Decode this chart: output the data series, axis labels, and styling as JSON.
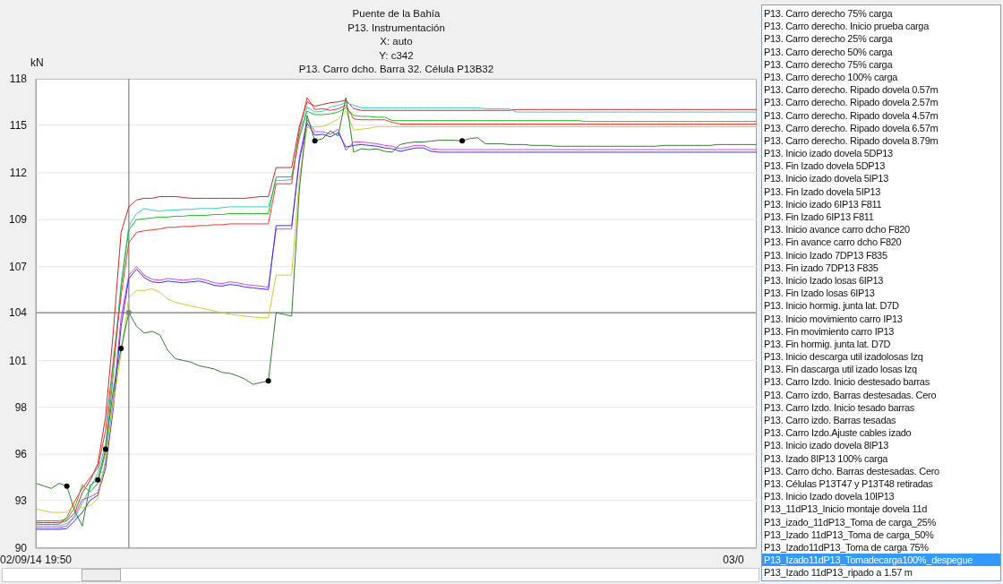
{
  "chart_data": [
    {
      "type": "line",
      "title": "Puente de la Bahía",
      "subtitle": "P13. Instrumentación\nX: auto\nY: c342\nP13. Carro dcho. Barra 32. Célula P13B32",
      "ylabel": "kN",
      "categories": [
        "02/09/14 19:50",
        null,
        null,
        null,
        null,
        null,
        null,
        null,
        null,
        null,
        null,
        null,
        null,
        null,
        null,
        null,
        null,
        null,
        null,
        null,
        null,
        null,
        null,
        null,
        null,
        null,
        null,
        null,
        null,
        null,
        null,
        null,
        null,
        null,
        null,
        null,
        null,
        null,
        null,
        null,
        null,
        null,
        null,
        null,
        null,
        null,
        null,
        null,
        null,
        null,
        null,
        null,
        null,
        null,
        null,
        null,
        null,
        null,
        null,
        null,
        null,
        null,
        null,
        null,
        null,
        null,
        null,
        null,
        null,
        null,
        null,
        null,
        null,
        null,
        null,
        null,
        null,
        null,
        null,
        null,
        null,
        null,
        null,
        null,
        null,
        null,
        null,
        null,
        null,
        null,
        "03/0",
        null,
        null,
        null
      ],
      "ylim": [
        90.2,
        117.7
      ],
      "yticks": [
        {
          "value": 90.2,
          "label": "90"
        },
        93,
        {
          "value": 95.7,
          "label": "96"
        },
        {
          "value": 98.45,
          "label": "98"
        },
        {
          "value": 101.2,
          "label": "101"
        },
        104,
        {
          "value": 106.7,
          "label": "107"
        },
        {
          "value": 109.45,
          "label": "109"
        },
        {
          "value": 112.2,
          "label": "112"
        },
        115,
        {
          "value": 117.7,
          "label": "118"
        }
      ],
      "grid": "y",
      "line_style": "solid",
      "series": [
        {
          "color": "#cc2a2a",
          "values": [
            91.7,
            91.7,
            91.7,
            91.7,
            91.8,
            92.25,
            93.45,
            94.15,
            95.15,
            97.9,
            102.9,
            108.7,
            110.2,
            110.6,
            110.7,
            110.7,
            110.8,
            110.8,
            110.8,
            110.75,
            110.7,
            110.7,
            110.7,
            110.7,
            110.7,
            110.7,
            110.7,
            110.7,
            110.75,
            110.8,
            110.8,
            112.5,
            112.5,
            112.5,
            114.9,
            116.35,
            116.1,
            116.2,
            116.3,
            116.35,
            116.45,
            115.95,
            115.85,
            115.85,
            115.85,
            115.85,
            115.85,
            115.85,
            115.85,
            115.85,
            115.85,
            115.85,
            115.85,
            115.85,
            115.85,
            115.85,
            115.85,
            115.85,
            115.85,
            115.85,
            115.85,
            115.85,
            115.9,
            115.9,
            115.9,
            115.9,
            115.9,
            115.9,
            115.9,
            115.9,
            115.9,
            115.9,
            115.9,
            115.9,
            115.9,
            115.9,
            115.9,
            115.9,
            115.9,
            115.9,
            115.9,
            115.9,
            115.9,
            115.9,
            115.9,
            115.9,
            115.9,
            115.9,
            115.9,
            115.9,
            115.9,
            115.9,
            115.9,
            115.9
          ]
        },
        {
          "color": "#33cccc",
          "values": [
            91.5,
            91.5,
            91.5,
            91.5,
            91.65,
            91.95,
            92.85,
            93.7,
            94.6,
            96.3,
            101.0,
            105.7,
            109.1,
            109.8,
            110.1,
            110.0,
            109.95,
            110.0,
            110.0,
            110.05,
            110.05,
            110.1,
            110.1,
            110.1,
            110.15,
            110.2,
            110.2,
            110.2,
            110.2,
            110.2,
            110.2,
            111.75,
            111.75,
            111.8,
            114.45,
            116.05,
            115.75,
            115.8,
            116.05,
            116.15,
            116.3,
            116.15,
            116.0,
            116.0,
            116.0,
            116.0,
            116.0,
            116.0,
            116.0,
            116.0,
            116.0,
            116.0,
            116.0,
            116.0,
            116.0,
            116.0,
            116.0,
            116.0,
            115.95,
            115.95,
            115.95,
            115.95,
            115.75,
            115.75,
            115.75,
            115.75,
            115.75,
            115.75,
            115.75,
            115.75,
            115.75,
            115.75,
            115.75,
            115.75,
            115.75,
            115.75,
            115.75,
            115.75,
            115.75,
            115.75,
            115.75,
            115.75,
            115.75,
            115.75,
            115.75,
            115.75,
            115.75,
            115.75,
            115.75,
            115.75,
            115.75,
            115.75,
            115.75,
            115.75
          ]
        },
        {
          "color": "#22bb22",
          "values": [
            91.8,
            91.8,
            91.8,
            91.8,
            91.9,
            92.55,
            93.9,
            93.5,
            94.0,
            95.8,
            100.4,
            105.5,
            108.85,
            109.45,
            109.5,
            109.55,
            109.6,
            109.6,
            109.65,
            109.65,
            109.7,
            109.7,
            109.7,
            109.75,
            109.75,
            109.8,
            109.8,
            109.8,
            109.8,
            109.8,
            109.8,
            111.95,
            111.95,
            111.95,
            114.25,
            115.8,
            115.6,
            115.6,
            115.65,
            115.75,
            116.0,
            115.55,
            115.5,
            115.5,
            115.45,
            115.45,
            115.25,
            115.25,
            115.25,
            115.25,
            115.25,
            115.25,
            115.25,
            115.25,
            115.25,
            115.25,
            115.25,
            115.25,
            115.25,
            115.25,
            115.25,
            115.25,
            115.25,
            115.25,
            115.25,
            115.25,
            115.25,
            115.25,
            115.25,
            115.25,
            115.25,
            115.2,
            115.2,
            115.2,
            115.2,
            115.2,
            115.2,
            115.2,
            115.2,
            115.2,
            115.2,
            115.2,
            115.2,
            115.2,
            115.2,
            115.2,
            115.2,
            115.2,
            115.2,
            115.2,
            115.2,
            115.2,
            115.2,
            115.2
          ]
        },
        {
          "color": "#ff3333",
          "values": [
            91.6,
            91.6,
            91.6,
            91.6,
            92.0,
            92.95,
            93.7,
            94.35,
            94.9,
            97.1,
            101.2,
            105.0,
            108.1,
            108.7,
            108.8,
            108.85,
            108.9,
            109.0,
            109.0,
            109.05,
            109.05,
            109.1,
            109.1,
            109.15,
            109.15,
            109.2,
            109.2,
            109.2,
            109.2,
            109.2,
            109.2,
            111.55,
            111.55,
            111.55,
            114.7,
            116.6,
            115.9,
            115.95,
            115.85,
            115.95,
            116.15,
            115.35,
            115.3,
            115.3,
            115.3,
            115.3,
            115.15,
            115.05,
            115.05,
            115.05,
            115.05,
            115.05,
            115.05,
            115.05,
            115.05,
            115.05,
            115.05,
            115.05,
            115.05,
            115.05,
            115.05,
            115.05,
            115.05,
            115.05,
            115.05,
            115.05,
            115.05,
            115.05,
            115.05,
            115.05,
            115.05,
            115.05,
            115.05,
            115.05,
            115.05,
            115.05,
            115.05,
            115.05,
            115.05,
            115.05,
            115.05,
            115.05,
            115.05,
            115.05,
            115.05,
            115.05,
            115.05,
            115.05,
            115.05,
            115.05,
            115.05,
            115.05,
            115.05,
            115.05
          ]
        },
        {
          "color": "#e040e0",
          "values": [
            91.4,
            91.4,
            91.4,
            91.4,
            91.5,
            92.1,
            93.05,
            93.2,
            93.45,
            95.2,
            98.95,
            103.7,
            106.2,
            106.7,
            106.2,
            105.95,
            105.9,
            106.0,
            105.95,
            105.9,
            105.95,
            106.0,
            105.9,
            105.75,
            105.7,
            105.8,
            105.75,
            105.65,
            105.6,
            105.55,
            105.5,
            108.9,
            108.9,
            108.9,
            113.1,
            115.3,
            114.6,
            114.6,
            114.45,
            114.75,
            113.5,
            114.0,
            114.0,
            113.95,
            113.9,
            113.8,
            113.75,
            113.6,
            113.7,
            113.8,
            113.8,
            113.6,
            113.55,
            113.55,
            113.55,
            113.55,
            113.55,
            113.55,
            113.55,
            113.55,
            113.55,
            113.55,
            113.55,
            113.55,
            113.55,
            113.55,
            113.55,
            113.55,
            113.55,
            113.55,
            113.55,
            113.55,
            113.55,
            113.55,
            113.55,
            113.55,
            113.55,
            113.55,
            113.55,
            113.55,
            113.55,
            113.55,
            113.55,
            113.55,
            113.55,
            113.55,
            113.55,
            113.55,
            113.55,
            113.55,
            113.55,
            113.55,
            113.55,
            113.55
          ]
        },
        {
          "color": "#3333ff",
          "values": [
            91.3,
            91.3,
            91.3,
            91.3,
            91.35,
            91.8,
            92.3,
            93.0,
            93.3,
            94.9,
            98.4,
            103.2,
            106.0,
            106.55,
            106.05,
            105.8,
            105.75,
            105.85,
            105.8,
            105.75,
            105.8,
            105.85,
            105.75,
            105.6,
            105.55,
            105.65,
            105.6,
            105.5,
            105.45,
            105.4,
            105.35,
            109.1,
            109.1,
            109.1,
            112.9,
            115.1,
            114.4,
            114.45,
            114.3,
            114.55,
            113.7,
            113.8,
            113.85,
            113.8,
            113.75,
            113.65,
            113.6,
            113.45,
            113.55,
            113.65,
            113.65,
            113.45,
            113.4,
            113.4,
            113.4,
            113.4,
            113.4,
            113.4,
            113.4,
            113.4,
            113.4,
            113.4,
            113.4,
            113.4,
            113.4,
            113.4,
            113.4,
            113.4,
            113.4,
            113.4,
            113.4,
            113.4,
            113.4,
            113.4,
            113.4,
            113.4,
            113.4,
            113.4,
            113.4,
            113.4,
            113.4,
            113.4,
            113.4,
            113.4,
            113.4,
            113.4,
            113.4,
            113.4,
            113.4,
            113.4,
            113.4,
            113.4,
            113.4,
            113.4
          ]
        },
        {
          "color": "#cccc33",
          "values": [
            92.5,
            92.4,
            92.3,
            92.3,
            92.3,
            92.75,
            92.55,
            92.7,
            93.1,
            95.4,
            98.65,
            101.6,
            104.9,
            105.3,
            105.3,
            105.4,
            105.2,
            104.8,
            104.6,
            104.5,
            104.4,
            104.3,
            104.2,
            104.1,
            104.0,
            103.9,
            103.85,
            103.8,
            103.75,
            103.7,
            103.7,
            106.2,
            106.2,
            106.2,
            111.9,
            114.85,
            114.9,
            114.9,
            115.1,
            115.35,
            115.8,
            114.7,
            114.75,
            114.8,
            114.9,
            114.9,
            114.9,
            114.9,
            114.9,
            114.9,
            114.9,
            114.9,
            114.9,
            114.9,
            114.9,
            114.9,
            114.9,
            114.9,
            114.9,
            114.9,
            114.9,
            114.9,
            114.9,
            114.9,
            114.9,
            114.9,
            114.9,
            114.9,
            114.9,
            114.9,
            114.9,
            114.9,
            114.9,
            114.9,
            114.9,
            114.9,
            114.9,
            114.9,
            114.9,
            114.9,
            114.9,
            114.9,
            114.9,
            114.9,
            114.9,
            114.9,
            114.9,
            114.9,
            114.9,
            114.9,
            114.9,
            114.9,
            114.9,
            114.9
          ]
        },
        {
          "color": "#2f7f2f",
          "values": [
            94.0,
            93.85,
            93.7,
            94.0,
            93.84,
            92.4,
            91.5,
            93.9,
            94.2,
            96.0,
            99.5,
            101.9,
            104.0,
            103.2,
            102.8,
            102.9,
            102.7,
            101.8,
            101.3,
            101.2,
            101.1,
            100.9,
            100.8,
            100.7,
            100.5,
            100.45,
            100.3,
            100.1,
            99.8,
            99.9,
            100.0,
            104.0,
            103.9,
            103.8,
            111.2,
            115.55,
            114.06,
            114.2,
            114.65,
            114.35,
            116.6,
            113.4,
            113.6,
            113.55,
            113.6,
            113.45,
            113.4,
            113.85,
            113.95,
            114.0,
            114.0,
            114.05,
            114.1,
            114.1,
            114.1,
            114.06,
            114.2,
            114.25,
            113.9,
            113.9,
            113.9,
            113.85,
            113.85,
            113.85,
            113.8,
            113.8,
            113.8,
            113.75,
            113.75,
            113.75,
            113.75,
            113.75,
            113.75,
            113.75,
            113.75,
            113.75,
            113.75,
            113.75,
            113.75,
            113.75,
            113.75,
            113.8,
            113.8,
            113.8,
            113.8,
            113.8,
            113.8,
            113.8,
            113.85,
            113.85,
            113.85,
            113.85,
            113.85,
            113.85
          ]
        },
        {
          "type": "scatter",
          "color": "#000000",
          "values": [
            null,
            null,
            null,
            null,
            93.84,
            null,
            null,
            null,
            94.2,
            96.0,
            null,
            101.9,
            104.0,
            null,
            null,
            null,
            null,
            null,
            null,
            null,
            null,
            null,
            null,
            null,
            null,
            null,
            null,
            null,
            null,
            null,
            100.0,
            null,
            null,
            null,
            null,
            null,
            114.06,
            null,
            null,
            null,
            null,
            null,
            null,
            null,
            null,
            null,
            null,
            null,
            null,
            null,
            null,
            null,
            null,
            null,
            null,
            114.06,
            null,
            null,
            null,
            null,
            null,
            null,
            null,
            null,
            null,
            null,
            null,
            null,
            null,
            null,
            null,
            null,
            null,
            null,
            null,
            null,
            null,
            null,
            null,
            null,
            null,
            null,
            null,
            null,
            null,
            null,
            null,
            null,
            null,
            null,
            null,
            null,
            null,
            null
          ],
          "colors": [
            null,
            null,
            null,
            null,
            "#000000",
            null,
            null,
            null,
            "#000000",
            "#000000",
            null,
            "#000000",
            "#808080",
            null,
            null,
            null,
            null,
            null,
            null,
            null,
            null,
            null,
            null,
            null,
            null,
            null,
            null,
            null,
            null,
            null,
            "#000000",
            null,
            null,
            null,
            null,
            null,
            "#000000",
            null,
            null,
            null,
            null,
            null,
            null,
            null,
            null,
            null,
            null,
            null,
            null,
            null,
            null,
            null,
            null,
            null,
            null,
            "#000000",
            null,
            null,
            null,
            null,
            null,
            null,
            null,
            null,
            null,
            null,
            null,
            null,
            null,
            null,
            null,
            null,
            null,
            null,
            null,
            null,
            null,
            null,
            null,
            null,
            null,
            null,
            null,
            null,
            null,
            null,
            null,
            null,
            null,
            null,
            null,
            null,
            null,
            null
          ]
        }
      ]
    },
    {
      "type": "other",
      "annotations": [
        "P13. Carro derecho 75% carga",
        "P13. Carro derecho. Inicio prueba carga",
        "P13. Carro derecho 25% carga",
        "P13. Carro derecho 50% carga",
        "P13. Carro derecho 75% carga",
        "P13. Carro derecho 100% carga",
        "P13. Carro derecho. Ripado dovela 0.57m",
        "P13. Carro derecho. Ripado dovela 2.57m",
        "P13. Carro derecho. Ripado dovela 4.57m",
        "P13. Carro derecho. Ripado dovela 6.57m",
        "P13. Carro derecho. Ripado dovela 8.79m",
        "P13. Inicio izado dovela 5DP13",
        "P13. Fin Izado dovela 5DP13",
        "P13. Inicio izado dovela 5IP13",
        "P13. Fin Izado dovela 5IP13",
        "P13. Inicio izado 6IP13 F811",
        "P13. Fin Izado 6IP13 F811",
        "P13. Inicio avance carro dcho F820",
        "P13. Fin avance carro dcho F820",
        "P13. Inicio Izado 7DP13 F835",
        "P13. Fin izado 7DP13 F835",
        "P13. Inicio Izado losas 6IP13",
        "P13. Fin Izado losas 6IP13",
        "P13. Inicio hormig. junta lat. D7D",
        "P13. Inicio movimiento carro IP13",
        "P13. Fin movimiento carro IP13",
        "P13. Fin hormig. junta lat. D7D",
        "P13. Inicio descarga util izadolosas Izq",
        "P13. Fin dascarga util izado losas Izq",
        "P13. Carro Izdo. Inicio destesado barras",
        "P13. Carro izdo. Barras destesadas. Cero",
        "P13. Carro Izdo. Inicio tesado barras",
        "P13. Carro izdo. Barras tesadas",
        "P13. Carro Izdo.Ajuste cables izado",
        "P13. Inicio izado dovela 8IP13",
        "P13. Izado 8IP13 100% carga",
        "P13. Carro dcho. Barras destesadas. Cero",
        "P13. Células P13T47 y P13T48 retiradas",
        "P13. Inicio Izado dovela 10IP13",
        "P13_11dP13_Inicio montaje dovela 11d",
        "P13_izado_11dP13_Toma de carga_25%",
        "P13_Izado 11dP13_Toma de carga_50%",
        "P13_Izado11dP13_Toma de carga 75%",
        "P13_Izado11dP13_Tomadecarga100%_despegue",
        "P13_Izado 11dP13_ripado a 1.57 m"
      ]
    }
  ]
}
